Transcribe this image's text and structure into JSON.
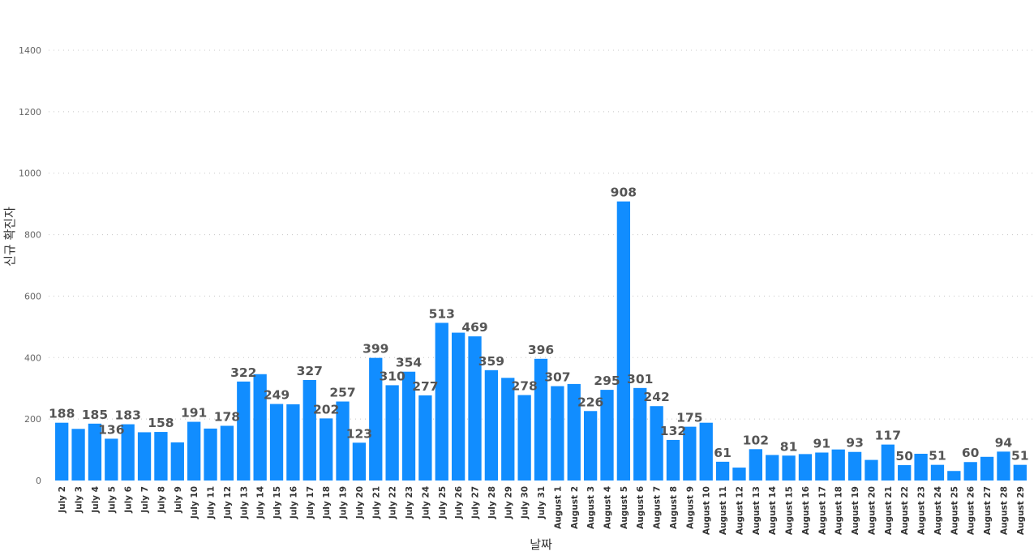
{
  "chart_data": {
    "type": "bar",
    "title": "",
    "xlabel": "날짜",
    "ylabel": "신규 확진자",
    "ylim": [
      0,
      1400
    ],
    "yticks": [
      0,
      200,
      400,
      600,
      800,
      1000,
      1200,
      1400
    ],
    "grid": true,
    "bar_color": "#118DFF",
    "categories": [
      "July 2",
      "July 3",
      "July 4",
      "July 5",
      "July 6",
      "July 7",
      "July 8",
      "July 9",
      "July 10",
      "July 11",
      "July 12",
      "July 13",
      "July 14",
      "July 15",
      "July 16",
      "July 17",
      "July 18",
      "July 19",
      "July 20",
      "July 21",
      "July 22",
      "July 23",
      "July 24",
      "July 25",
      "July 26",
      "July 27",
      "July 28",
      "July 29",
      "July 30",
      "July 31",
      "August 1",
      "August 2",
      "August 3",
      "August 4",
      "August 5",
      "August 6",
      "August 7",
      "August 8",
      "August 9",
      "August 10",
      "August 11",
      "August 12",
      "August 13",
      "August 14",
      "August 15",
      "August 16",
      "August 17",
      "August 18",
      "August 19",
      "August 20",
      "August 21",
      "August 22",
      "August 23",
      "August 24",
      "August 25",
      "August 26",
      "August 27",
      "August 28",
      "August 29"
    ],
    "values": [
      188,
      168,
      185,
      136,
      183,
      157,
      158,
      124,
      191,
      169,
      178,
      322,
      346,
      249,
      248,
      327,
      202,
      257,
      123,
      399,
      310,
      354,
      277,
      513,
      481,
      469,
      359,
      334,
      278,
      396,
      307,
      314,
      226,
      295,
      908,
      301,
      242,
      132,
      175,
      188,
      61,
      42,
      102,
      83,
      81,
      86,
      91,
      101,
      93,
      67,
      117,
      50,
      87,
      51,
      31,
      60,
      77,
      94,
      51
    ],
    "data_labels": [
      true,
      false,
      true,
      true,
      true,
      false,
      true,
      false,
      true,
      false,
      true,
      true,
      false,
      true,
      false,
      true,
      true,
      true,
      true,
      true,
      true,
      true,
      true,
      true,
      false,
      true,
      true,
      false,
      true,
      true,
      true,
      false,
      true,
      true,
      true,
      true,
      true,
      true,
      true,
      false,
      true,
      false,
      true,
      false,
      true,
      false,
      true,
      false,
      true,
      false,
      true,
      true,
      false,
      true,
      false,
      true,
      false,
      true,
      true
    ]
  }
}
